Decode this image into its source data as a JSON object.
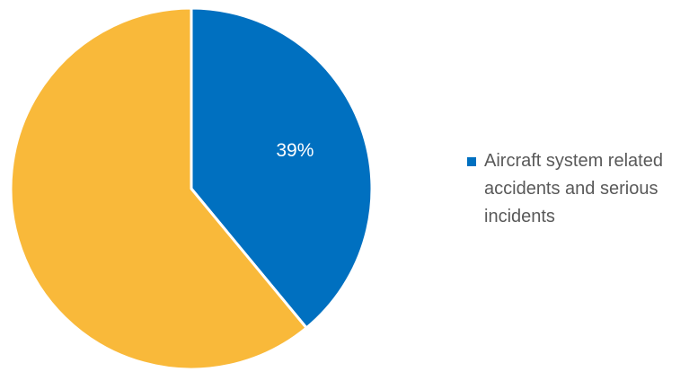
{
  "chart_data": {
    "type": "pie",
    "slices": [
      {
        "name": "Aircraft system related accidents and serious incidents",
        "value": 39,
        "label": "39%",
        "color": "#0070C0",
        "in_legend": true
      },
      {
        "value": 61,
        "label": "",
        "color": "#F9B93A",
        "in_legend": false
      }
    ],
    "start_angle_deg": 0,
    "direction": "clockwise",
    "legend": {
      "placement": "right"
    },
    "slice_border_color": "#ffffff"
  }
}
